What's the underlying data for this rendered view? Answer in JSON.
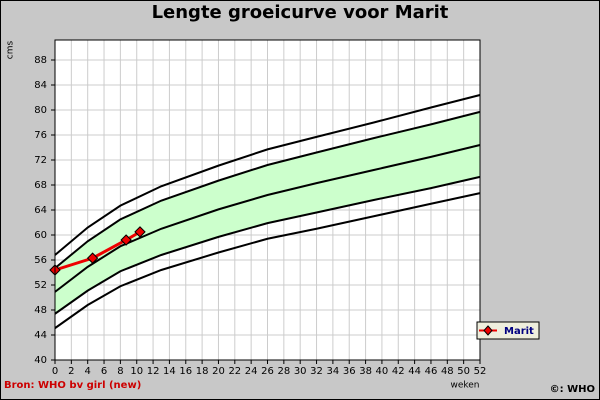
{
  "chart_data": {
    "type": "line",
    "title": "Lengte groeicurve voor Marit",
    "y_label": "cms",
    "x_label": "weken",
    "source": "Bron: WHO bv girl (new)",
    "copyright": "©: WHO",
    "xlim": [
      0,
      52
    ],
    "xticks": [
      0,
      2,
      4,
      6,
      8,
      10,
      12,
      14,
      16,
      18,
      20,
      22,
      24,
      26,
      28,
      30,
      32,
      34,
      36,
      38,
      40,
      42,
      44,
      46,
      48,
      50,
      52
    ],
    "ylim": [
      40,
      91.2
    ],
    "yticks": [
      40,
      44,
      48,
      52,
      56,
      60,
      64,
      68,
      72,
      76,
      80,
      84,
      88
    ],
    "grid": true,
    "legend": "right",
    "reference": {
      "color": "#000000",
      "band_color": "#ccffcc",
      "x": [
        0,
        4,
        8,
        13,
        20,
        26,
        32,
        39,
        46,
        52
      ],
      "curves": [
        [
          56.8,
          61.2,
          64.7,
          67.8,
          71.1,
          73.7,
          75.7,
          78.0,
          80.4,
          82.4
        ],
        [
          54.7,
          59.0,
          62.5,
          65.5,
          68.7,
          71.2,
          73.2,
          75.5,
          77.7,
          79.7
        ],
        [
          50.9,
          54.9,
          58.2,
          61.0,
          64.1,
          66.4,
          68.3,
          70.4,
          72.5,
          74.4
        ],
        [
          47.4,
          51.1,
          54.2,
          56.8,
          59.7,
          61.9,
          63.6,
          65.6,
          67.5,
          69.3
        ],
        [
          45.1,
          48.8,
          51.8,
          54.4,
          57.2,
          59.4,
          61.0,
          63.0,
          65.0,
          66.7
        ]
      ]
    },
    "series": [
      {
        "name": "Marit",
        "color": "#ee0000",
        "x": [
          0,
          4.6,
          8.7,
          10.4
        ],
        "values": [
          54.4,
          56.3,
          59.2,
          60.5
        ]
      }
    ]
  }
}
